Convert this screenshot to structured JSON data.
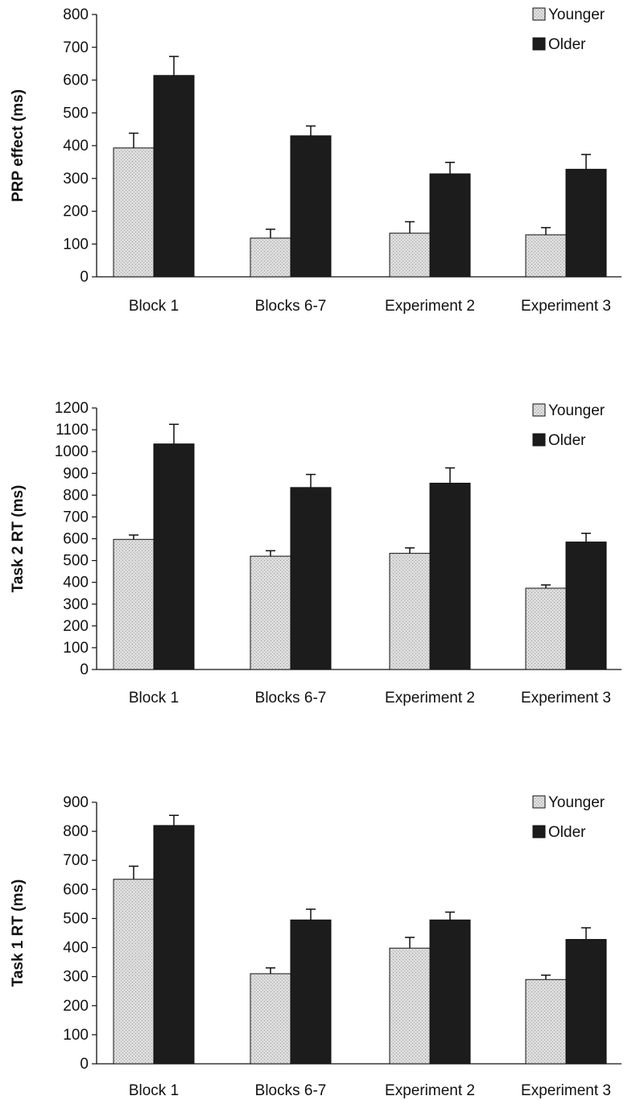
{
  "colors": {
    "younger_fill": "#d8d8d8",
    "older_fill": "#1c1c1c",
    "axis": "#111111"
  },
  "chart_data": [
    {
      "type": "bar",
      "ylabel": "PRP effect (ms)",
      "ylim": [
        0,
        800
      ],
      "yticks": [
        0,
        100,
        200,
        300,
        400,
        500,
        600,
        700,
        800
      ],
      "categories": [
        "Block 1",
        "Blocks 6-7",
        "Experiment 2",
        "Experiment 3"
      ],
      "series": [
        {
          "name": "Younger",
          "values": [
            393,
            118,
            133,
            128
          ],
          "errors": [
            45,
            27,
            35,
            22
          ]
        },
        {
          "name": "Older",
          "values": [
            614,
            430,
            314,
            328
          ],
          "errors": [
            58,
            30,
            35,
            45
          ]
        }
      ],
      "legend_position": "top-right",
      "grid": false
    },
    {
      "type": "bar",
      "ylabel": "Task 2 RT (ms)",
      "ylim": [
        0,
        1200
      ],
      "yticks": [
        0,
        100,
        200,
        300,
        400,
        500,
        600,
        700,
        800,
        900,
        1000,
        1100,
        1200
      ],
      "categories": [
        "Block 1",
        "Blocks 6-7",
        "Experiment 2",
        "Experiment 3"
      ],
      "series": [
        {
          "name": "Younger",
          "values": [
            597,
            520,
            533,
            373
          ],
          "errors": [
            20,
            25,
            25,
            15
          ]
        },
        {
          "name": "Older",
          "values": [
            1035,
            835,
            855,
            585
          ],
          "errors": [
            90,
            60,
            70,
            40
          ]
        }
      ],
      "legend_position": "top-right",
      "grid": false
    },
    {
      "type": "bar",
      "ylabel": "Task 1 RT (ms)",
      "ylim": [
        0,
        900
      ],
      "yticks": [
        0,
        100,
        200,
        300,
        400,
        500,
        600,
        700,
        800,
        900
      ],
      "categories": [
        "Block 1",
        "Blocks 6-7",
        "Experiment 2",
        "Experiment 3"
      ],
      "series": [
        {
          "name": "Younger",
          "values": [
            635,
            310,
            398,
            290
          ],
          "errors": [
            45,
            20,
            37,
            15
          ]
        },
        {
          "name": "Older",
          "values": [
            820,
            495,
            495,
            428
          ],
          "errors": [
            35,
            37,
            27,
            40
          ]
        }
      ],
      "legend_position": "top-right",
      "grid": false
    }
  ]
}
